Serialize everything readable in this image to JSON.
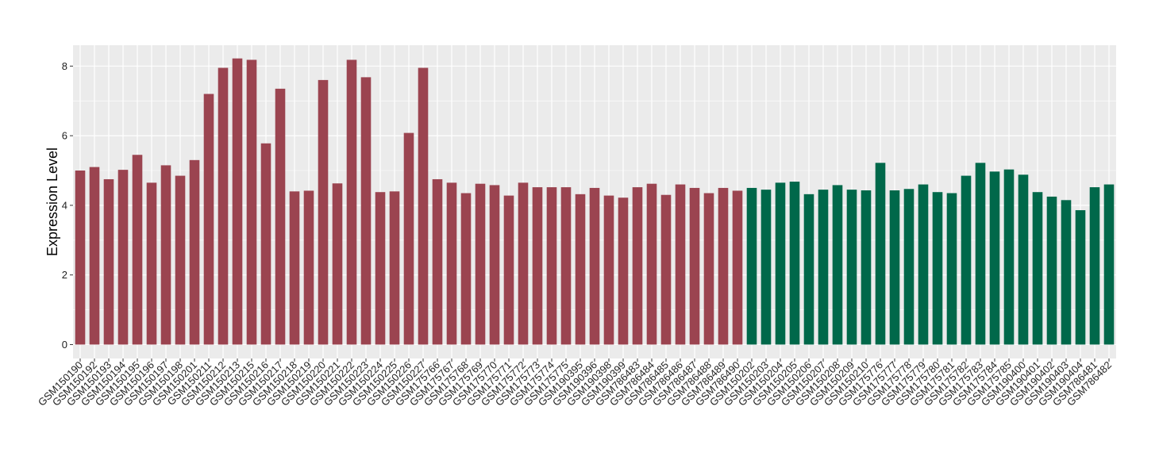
{
  "chart_data": {
    "type": "bar",
    "ylabel": "Expression Level",
    "xlabel": "",
    "ylim": [
      -0.4,
      8.6
    ],
    "y_ticks": [
      0,
      2,
      4,
      6,
      8
    ],
    "grid": true,
    "colors": {
      "group1": "#9b4450",
      "group2": "#00684a",
      "panel": "#ebebeb",
      "grid": "#ffffff"
    },
    "categories": [
      "GSM150190",
      "GSM150192",
      "GSM150193",
      "GSM150194",
      "GSM150195",
      "GSM150196",
      "GSM150197",
      "GSM150198",
      "GSM150201",
      "GSM150211",
      "GSM150212",
      "GSM150213",
      "GSM150215",
      "GSM150216",
      "GSM150217",
      "GSM150218",
      "GSM150219",
      "GSM150220",
      "GSM150221",
      "GSM150222",
      "GSM150223",
      "GSM150224",
      "GSM150225",
      "GSM150226",
      "GSM150227",
      "GSM175766",
      "GSM175767",
      "GSM175768",
      "GSM175769",
      "GSM175770",
      "GSM175771",
      "GSM175772",
      "GSM175773",
      "GSM175774",
      "GSM175775",
      "GSM190395",
      "GSM190396",
      "GSM190398",
      "GSM190399",
      "GSM786483",
      "GSM786484",
      "GSM786485",
      "GSM786486",
      "GSM786487",
      "GSM786488",
      "GSM786489",
      "GSM786490",
      "GSM150202",
      "GSM150203",
      "GSM150204",
      "GSM150205",
      "GSM150206",
      "GSM150207",
      "GSM150208",
      "GSM150209",
      "GSM150210",
      "GSM175776",
      "GSM175777",
      "GSM175778",
      "GSM175779",
      "GSM175780",
      "GSM175781",
      "GSM175782",
      "GSM175783",
      "GSM175784",
      "GSM175785",
      "GSM190400",
      "GSM190401",
      "GSM190402",
      "GSM190403",
      "GSM190404",
      "GSM786481",
      "GSM786482"
    ],
    "values": [
      5.0,
      5.1,
      4.75,
      5.02,
      5.45,
      4.65,
      5.15,
      4.85,
      5.3,
      7.2,
      7.95,
      8.22,
      8.18,
      5.78,
      7.35,
      4.4,
      4.42,
      7.6,
      4.63,
      8.18,
      7.68,
      4.38,
      4.4,
      6.08,
      7.95,
      4.75,
      4.65,
      4.35,
      4.62,
      4.58,
      4.28,
      4.65,
      4.52,
      4.52,
      4.52,
      4.32,
      4.5,
      4.28,
      4.22,
      4.52,
      4.62,
      4.3,
      4.6,
      4.5,
      4.35,
      4.5,
      4.42,
      4.5,
      4.45,
      4.65,
      4.68,
      4.32,
      4.45,
      4.58,
      4.45,
      4.43,
      5.22,
      4.43,
      4.47,
      4.6,
      4.38,
      4.35,
      4.85,
      5.22,
      4.97,
      5.03,
      4.88,
      4.38,
      4.25,
      4.15,
      3.86,
      4.52,
      4.6
    ],
    "groups": [
      1,
      1,
      1,
      1,
      1,
      1,
      1,
      1,
      1,
      1,
      1,
      1,
      1,
      1,
      1,
      1,
      1,
      1,
      1,
      1,
      1,
      1,
      1,
      1,
      1,
      1,
      1,
      1,
      1,
      1,
      1,
      1,
      1,
      1,
      1,
      1,
      1,
      1,
      1,
      1,
      1,
      1,
      1,
      1,
      1,
      1,
      1,
      2,
      2,
      2,
      2,
      2,
      2,
      2,
      2,
      2,
      2,
      2,
      2,
      2,
      2,
      2,
      2,
      2,
      2,
      2,
      2,
      2,
      2,
      2,
      2,
      2,
      2
    ]
  }
}
